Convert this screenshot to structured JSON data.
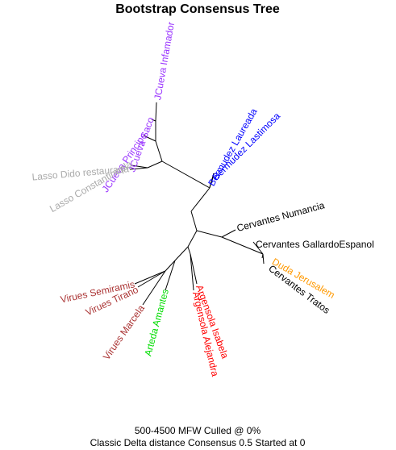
{
  "title": "Bootstrap Consensus Tree",
  "caption_line1": "500-4500 MFW  Culled @ 0%",
  "caption_line2": "Classic Delta distance Consensus 0.5 Started at 0",
  "colors": {
    "purple": "#9933ff",
    "gray": "#aaaaaa",
    "blue": "#0000ff",
    "black": "#000000",
    "orange": "#ff9900",
    "green": "#00dd00",
    "red": "#ff0000",
    "brown": "#aa3333"
  },
  "leaves": [
    {
      "label": "JCueva Infamador",
      "color": "purple"
    },
    {
      "label": "JCueva Saco",
      "color": "purple"
    },
    {
      "label": "JCueva Principe",
      "color": "purple"
    },
    {
      "label": "Lasso Constantinopla",
      "color": "gray"
    },
    {
      "label": "Lasso Dido restaurada",
      "color": "gray"
    },
    {
      "label": "Bermudez Laureada",
      "color": "blue"
    },
    {
      "label": "Bermudez Lastimosa",
      "color": "blue"
    },
    {
      "label": "Cervantes Numancia",
      "color": "black"
    },
    {
      "label": "Cervantes GallardoEspanol",
      "color": "black"
    },
    {
      "label": "Duda Jerusalem",
      "color": "orange"
    },
    {
      "label": "Cervantes Tratos",
      "color": "black"
    },
    {
      "label": "Argensola Isabela",
      "color": "red"
    },
    {
      "label": "Argensola Alejandra",
      "color": "red"
    },
    {
      "label": "Arteda Amantes",
      "color": "green"
    },
    {
      "label": "Virues Marcela",
      "color": "brown"
    },
    {
      "label": "Virues Tirano",
      "color": "brown"
    },
    {
      "label": "Virues Semiramis",
      "color": "brown"
    }
  ]
}
